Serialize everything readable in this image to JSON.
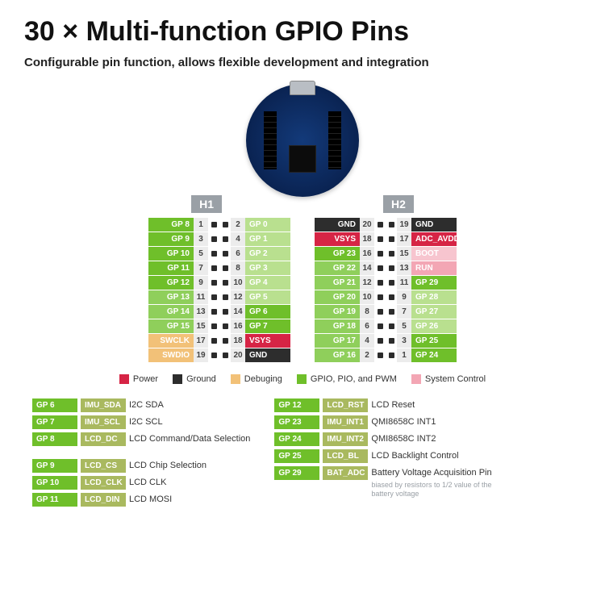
{
  "colors": {
    "gpio_bright": "#6fbf2a",
    "gpio_mid": "#8fcf5b",
    "gpio_pale": "#b9e08f",
    "power": "#d62445",
    "ground": "#2d2d2d",
    "debug": "#f2c178",
    "sysctrl": "#f3a6b4",
    "sysctrl_bg": "#f7c5cf",
    "header_grey": "#9aa0a6",
    "num_bg": "#ececec",
    "sig_olive": "#a9b95f"
  },
  "title": "30 × Multi-function GPIO Pins",
  "subtitle": "Configurable pin function, allows flexible development and integration",
  "headers": {
    "left": "H1",
    "right": "H2"
  },
  "legend": [
    {
      "label": "Power",
      "color": "#d62445"
    },
    {
      "label": "Ground",
      "color": "#2d2d2d"
    },
    {
      "label": "Debuging",
      "color": "#f2c178"
    },
    {
      "label": "GPIO, PIO, and PWM",
      "color": "#6fbf2a"
    },
    {
      "label": "System Control",
      "color": "#f3a6b4"
    }
  ],
  "H1": [
    {
      "l": {
        "t": "GP 8",
        "c": "#6fbf2a"
      },
      "ln": "1",
      "rn": "2",
      "r": {
        "t": "GP 0",
        "c": "#b9e08f"
      }
    },
    {
      "l": {
        "t": "GP 9",
        "c": "#6fbf2a"
      },
      "ln": "3",
      "rn": "4",
      "r": {
        "t": "GP 1",
        "c": "#b9e08f"
      }
    },
    {
      "l": {
        "t": "GP 10",
        "c": "#6fbf2a"
      },
      "ln": "5",
      "rn": "6",
      "r": {
        "t": "GP 2",
        "c": "#b9e08f"
      }
    },
    {
      "l": {
        "t": "GP 11",
        "c": "#6fbf2a"
      },
      "ln": "7",
      "rn": "8",
      "r": {
        "t": "GP 3",
        "c": "#b9e08f"
      }
    },
    {
      "l": {
        "t": "GP 12",
        "c": "#6fbf2a"
      },
      "ln": "9",
      "rn": "10",
      "r": {
        "t": "GP 4",
        "c": "#b9e08f"
      }
    },
    {
      "l": {
        "t": "GP 13",
        "c": "#8fcf5b"
      },
      "ln": "11",
      "rn": "12",
      "r": {
        "t": "GP 5",
        "c": "#b9e08f"
      }
    },
    {
      "l": {
        "t": "GP 14",
        "c": "#8fcf5b"
      },
      "ln": "13",
      "rn": "14",
      "r": {
        "t": "GP 6",
        "c": "#6fbf2a"
      }
    },
    {
      "l": {
        "t": "GP 15",
        "c": "#8fcf5b"
      },
      "ln": "15",
      "rn": "16",
      "r": {
        "t": "GP 7",
        "c": "#6fbf2a"
      }
    },
    {
      "l": {
        "t": "SWCLK",
        "c": "#f2c178"
      },
      "ln": "17",
      "rn": "18",
      "r": {
        "t": "VSYS",
        "c": "#d62445"
      }
    },
    {
      "l": {
        "t": "SWDIO",
        "c": "#f2c178"
      },
      "ln": "19",
      "rn": "20",
      "r": {
        "t": "GND",
        "c": "#2d2d2d"
      }
    }
  ],
  "H2": [
    {
      "l": {
        "t": "GND",
        "c": "#2d2d2d"
      },
      "ln": "20",
      "rn": "19",
      "r": {
        "t": "GND",
        "c": "#2d2d2d"
      }
    },
    {
      "l": {
        "t": "VSYS",
        "c": "#d62445"
      },
      "ln": "18",
      "rn": "17",
      "r": {
        "t": "ADC_AVDD",
        "c": "#d62445"
      }
    },
    {
      "l": {
        "t": "GP 23",
        "c": "#6fbf2a"
      },
      "ln": "16",
      "rn": "15",
      "r": {
        "t": "BOOT",
        "c": "#f7c5cf"
      }
    },
    {
      "l": {
        "t": "GP 22",
        "c": "#8fcf5b"
      },
      "ln": "14",
      "rn": "13",
      "r": {
        "t": "RUN",
        "c": "#f3a6b4"
      }
    },
    {
      "l": {
        "t": "GP 21",
        "c": "#8fcf5b"
      },
      "ln": "12",
      "rn": "11",
      "r": {
        "t": "GP 29",
        "c": "#6fbf2a"
      }
    },
    {
      "l": {
        "t": "GP 20",
        "c": "#8fcf5b"
      },
      "ln": "10",
      "rn": "9",
      "r": {
        "t": "GP 28",
        "c": "#b9e08f"
      }
    },
    {
      "l": {
        "t": "GP 19",
        "c": "#8fcf5b"
      },
      "ln": "8",
      "rn": "7",
      "r": {
        "t": "GP 27",
        "c": "#b9e08f"
      }
    },
    {
      "l": {
        "t": "GP 18",
        "c": "#8fcf5b"
      },
      "ln": "6",
      "rn": "5",
      "r": {
        "t": "GP 26",
        "c": "#b9e08f"
      }
    },
    {
      "l": {
        "t": "GP 17",
        "c": "#8fcf5b"
      },
      "ln": "4",
      "rn": "3",
      "r": {
        "t": "GP 25",
        "c": "#6fbf2a"
      }
    },
    {
      "l": {
        "t": "GP 16",
        "c": "#8fcf5b"
      },
      "ln": "2",
      "rn": "1",
      "r": {
        "t": "GP 24",
        "c": "#6fbf2a"
      }
    }
  ],
  "fn_left": [
    {
      "gp": "GP 6",
      "sig": "IMU_SDA",
      "desc": "I2C SDA"
    },
    {
      "gp": "GP 7",
      "sig": "IMU_SCL",
      "desc": "I2C SCL"
    },
    {
      "gp": "GP 8",
      "sig": "LCD_DC",
      "desc": "LCD Command/Data Selection"
    },
    {
      "gap": true
    },
    {
      "gp": "GP 9",
      "sig": "LCD_CS",
      "desc": "LCD Chip Selection"
    },
    {
      "gp": "GP 10",
      "sig": "LCD_CLK",
      "desc": "LCD CLK"
    },
    {
      "gp": "GP 11",
      "sig": "LCD_DIN",
      "desc": "LCD MOSI"
    }
  ],
  "fn_right": [
    {
      "gp": "GP 12",
      "sig": "LCD_RST",
      "desc": "LCD Reset"
    },
    {
      "gp": "GP 23",
      "sig": "IMU_INT1",
      "desc": "QMI8658C INT1"
    },
    {
      "gp": "GP 24",
      "sig": "IMU_INT2",
      "desc": "QMI8658C INT2"
    },
    {
      "gp": "GP 25",
      "sig": "LCD_BL",
      "desc": "LCD Backlight Control"
    },
    {
      "gp": "GP 29",
      "sig": "BAT_ADC",
      "desc": "Battery Voltage Acquisition Pin",
      "sub": "biased by resistors to 1/2 value of the battery voltage"
    }
  ]
}
